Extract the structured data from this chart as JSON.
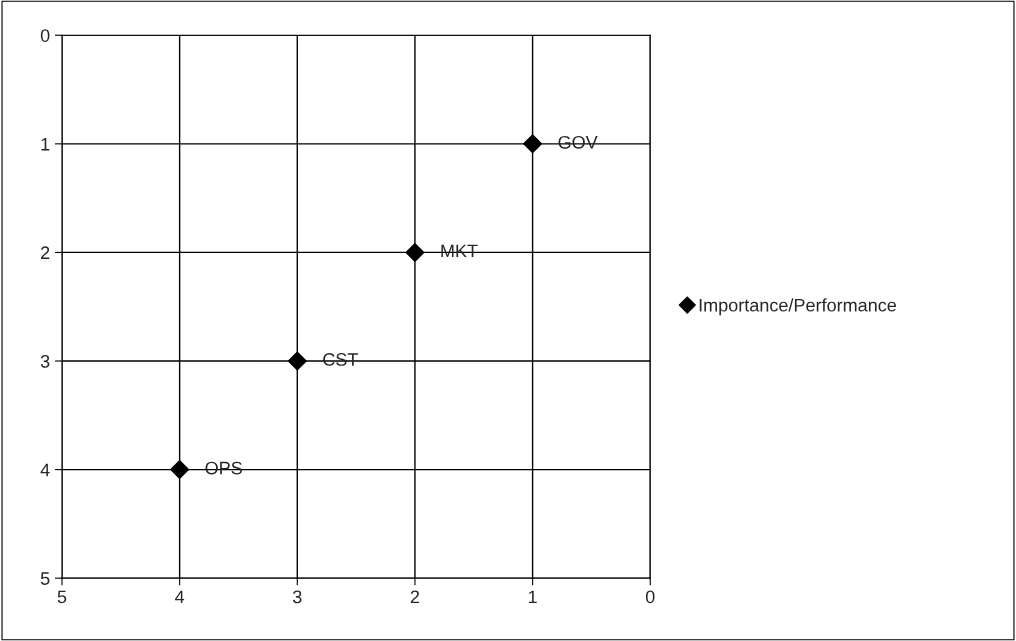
{
  "chart_data": {
    "type": "scatter",
    "x": [
      1,
      2,
      3,
      4
    ],
    "series": [
      {
        "name": "Importance/Performance",
        "color": "#000000",
        "values": [
          1,
          2,
          3,
          4
        ]
      }
    ],
    "xlim": [
      5,
      0
    ],
    "ylim": [
      5,
      0
    ],
    "xticks": [
      5,
      4,
      3,
      2,
      1,
      0
    ],
    "yticks": [
      0,
      1,
      2,
      3,
      4,
      5
    ],
    "annotations": [
      {
        "text": "GOV",
        "x": 1,
        "y": 1
      },
      {
        "text": "MKT",
        "x": 2,
        "y": 2
      },
      {
        "text": "CST",
        "x": 3,
        "y": 3
      },
      {
        "text": "OPS",
        "x": 4,
        "y": 4
      }
    ],
    "grid": true,
    "legend": "right",
    "marker": "diamond"
  }
}
